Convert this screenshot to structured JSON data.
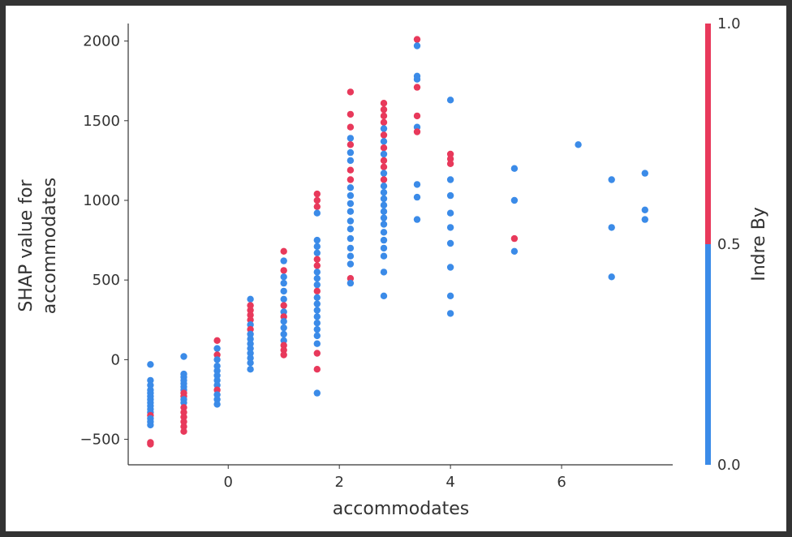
{
  "chart_data": {
    "type": "scatter",
    "xlabel": "accommodates",
    "ylabel": [
      "SHAP value for",
      "accommodates"
    ],
    "xlim": [
      -1.8,
      8.0
    ],
    "ylim": [
      -660,
      2110
    ],
    "xticks": [
      "0",
      "2",
      "4",
      "6"
    ],
    "xtick_values": [
      0,
      2,
      4,
      6
    ],
    "yticks": [
      "−500",
      "0",
      "500",
      "1000",
      "1500",
      "2000"
    ],
    "ytick_values": [
      -500,
      0,
      500,
      1000,
      1500,
      2000
    ],
    "colorbar": {
      "label": "Indre By",
      "ticks": [
        "1.0",
        "0.5",
        "0.0"
      ],
      "tick_values": [
        1.0,
        0.5,
        0.0
      ],
      "low_color": "#3b8be8",
      "high_color": "#e8395b"
    },
    "colors": {
      "blue": "#3b8be8",
      "red": "#e8395b"
    },
    "points": [
      {
        "x": -1.4,
        "y": -30,
        "c": 0
      },
      {
        "x": -1.4,
        "y": -130,
        "c": 0
      },
      {
        "x": -1.4,
        "y": -160,
        "c": 0
      },
      {
        "x": -1.4,
        "y": -190,
        "c": 0
      },
      {
        "x": -1.4,
        "y": -210,
        "c": 0
      },
      {
        "x": -1.4,
        "y": -230,
        "c": 0
      },
      {
        "x": -1.4,
        "y": -250,
        "c": 0
      },
      {
        "x": -1.4,
        "y": -270,
        "c": 0
      },
      {
        "x": -1.4,
        "y": -290,
        "c": 0
      },
      {
        "x": -1.4,
        "y": -310,
        "c": 0
      },
      {
        "x": -1.4,
        "y": -330,
        "c": 0
      },
      {
        "x": -1.4,
        "y": -350,
        "c": 1
      },
      {
        "x": -1.4,
        "y": -370,
        "c": 0
      },
      {
        "x": -1.4,
        "y": -390,
        "c": 0
      },
      {
        "x": -1.4,
        "y": -410,
        "c": 0
      },
      {
        "x": -1.4,
        "y": -520,
        "c": 1
      },
      {
        "x": -1.4,
        "y": -530,
        "c": 1
      },
      {
        "x": -0.8,
        "y": 20,
        "c": 0
      },
      {
        "x": -0.8,
        "y": -90,
        "c": 0
      },
      {
        "x": -0.8,
        "y": -110,
        "c": 0
      },
      {
        "x": -0.8,
        "y": -130,
        "c": 0
      },
      {
        "x": -0.8,
        "y": -150,
        "c": 0
      },
      {
        "x": -0.8,
        "y": -170,
        "c": 0
      },
      {
        "x": -0.8,
        "y": -190,
        "c": 0
      },
      {
        "x": -0.8,
        "y": -210,
        "c": 1
      },
      {
        "x": -0.8,
        "y": -230,
        "c": 1
      },
      {
        "x": -0.8,
        "y": -250,
        "c": 0
      },
      {
        "x": -0.8,
        "y": -270,
        "c": 0
      },
      {
        "x": -0.8,
        "y": -300,
        "c": 1
      },
      {
        "x": -0.8,
        "y": -330,
        "c": 1
      },
      {
        "x": -0.8,
        "y": -360,
        "c": 1
      },
      {
        "x": -0.8,
        "y": -390,
        "c": 1
      },
      {
        "x": -0.8,
        "y": -420,
        "c": 1
      },
      {
        "x": -0.8,
        "y": -450,
        "c": 1
      },
      {
        "x": -0.2,
        "y": 120,
        "c": 1
      },
      {
        "x": -0.2,
        "y": 70,
        "c": 0
      },
      {
        "x": -0.2,
        "y": 30,
        "c": 1
      },
      {
        "x": -0.2,
        "y": 0,
        "c": 0
      },
      {
        "x": -0.2,
        "y": -40,
        "c": 0
      },
      {
        "x": -0.2,
        "y": -70,
        "c": 0
      },
      {
        "x": -0.2,
        "y": -100,
        "c": 0
      },
      {
        "x": -0.2,
        "y": -130,
        "c": 0
      },
      {
        "x": -0.2,
        "y": -160,
        "c": 0
      },
      {
        "x": -0.2,
        "y": -190,
        "c": 1
      },
      {
        "x": -0.2,
        "y": -220,
        "c": 0
      },
      {
        "x": -0.2,
        "y": -250,
        "c": 0
      },
      {
        "x": -0.2,
        "y": -280,
        "c": 0
      },
      {
        "x": 0.4,
        "y": 380,
        "c": 0
      },
      {
        "x": 0.4,
        "y": 340,
        "c": 1
      },
      {
        "x": 0.4,
        "y": 310,
        "c": 1
      },
      {
        "x": 0.4,
        "y": 280,
        "c": 1
      },
      {
        "x": 0.4,
        "y": 250,
        "c": 1
      },
      {
        "x": 0.4,
        "y": 220,
        "c": 0
      },
      {
        "x": 0.4,
        "y": 190,
        "c": 1
      },
      {
        "x": 0.4,
        "y": 160,
        "c": 0
      },
      {
        "x": 0.4,
        "y": 130,
        "c": 0
      },
      {
        "x": 0.4,
        "y": 100,
        "c": 0
      },
      {
        "x": 0.4,
        "y": 70,
        "c": 0
      },
      {
        "x": 0.4,
        "y": 40,
        "c": 0
      },
      {
        "x": 0.4,
        "y": 10,
        "c": 0
      },
      {
        "x": 0.4,
        "y": -20,
        "c": 0
      },
      {
        "x": 0.4,
        "y": -60,
        "c": 0
      },
      {
        "x": 1.0,
        "y": 680,
        "c": 1
      },
      {
        "x": 1.0,
        "y": 620,
        "c": 0
      },
      {
        "x": 1.0,
        "y": 560,
        "c": 1
      },
      {
        "x": 1.0,
        "y": 520,
        "c": 0
      },
      {
        "x": 1.0,
        "y": 480,
        "c": 0
      },
      {
        "x": 1.0,
        "y": 430,
        "c": 0
      },
      {
        "x": 1.0,
        "y": 380,
        "c": 0
      },
      {
        "x": 1.0,
        "y": 340,
        "c": 1
      },
      {
        "x": 1.0,
        "y": 300,
        "c": 0
      },
      {
        "x": 1.0,
        "y": 270,
        "c": 1
      },
      {
        "x": 1.0,
        "y": 240,
        "c": 0
      },
      {
        "x": 1.0,
        "y": 200,
        "c": 0
      },
      {
        "x": 1.0,
        "y": 160,
        "c": 0
      },
      {
        "x": 1.0,
        "y": 120,
        "c": 0
      },
      {
        "x": 1.0,
        "y": 90,
        "c": 1
      },
      {
        "x": 1.0,
        "y": 60,
        "c": 1
      },
      {
        "x": 1.0,
        "y": 30,
        "c": 1
      },
      {
        "x": 1.6,
        "y": 1040,
        "c": 1
      },
      {
        "x": 1.6,
        "y": 1000,
        "c": 1
      },
      {
        "x": 1.6,
        "y": 960,
        "c": 1
      },
      {
        "x": 1.6,
        "y": 920,
        "c": 0
      },
      {
        "x": 1.6,
        "y": 750,
        "c": 0
      },
      {
        "x": 1.6,
        "y": 710,
        "c": 0
      },
      {
        "x": 1.6,
        "y": 670,
        "c": 0
      },
      {
        "x": 1.6,
        "y": 630,
        "c": 1
      },
      {
        "x": 1.6,
        "y": 590,
        "c": 1
      },
      {
        "x": 1.6,
        "y": 550,
        "c": 0
      },
      {
        "x": 1.6,
        "y": 510,
        "c": 0
      },
      {
        "x": 1.6,
        "y": 470,
        "c": 0
      },
      {
        "x": 1.6,
        "y": 430,
        "c": 1
      },
      {
        "x": 1.6,
        "y": 390,
        "c": 0
      },
      {
        "x": 1.6,
        "y": 350,
        "c": 0
      },
      {
        "x": 1.6,
        "y": 310,
        "c": 0
      },
      {
        "x": 1.6,
        "y": 270,
        "c": 0
      },
      {
        "x": 1.6,
        "y": 230,
        "c": 0
      },
      {
        "x": 1.6,
        "y": 190,
        "c": 0
      },
      {
        "x": 1.6,
        "y": 150,
        "c": 0
      },
      {
        "x": 1.6,
        "y": 100,
        "c": 0
      },
      {
        "x": 1.6,
        "y": 40,
        "c": 1
      },
      {
        "x": 1.6,
        "y": -60,
        "c": 1
      },
      {
        "x": 1.6,
        "y": -210,
        "c": 0
      },
      {
        "x": 2.2,
        "y": 1680,
        "c": 1
      },
      {
        "x": 2.2,
        "y": 1540,
        "c": 1
      },
      {
        "x": 2.2,
        "y": 1460,
        "c": 1
      },
      {
        "x": 2.2,
        "y": 1390,
        "c": 0
      },
      {
        "x": 2.2,
        "y": 1350,
        "c": 1
      },
      {
        "x": 2.2,
        "y": 1300,
        "c": 0
      },
      {
        "x": 2.2,
        "y": 1250,
        "c": 0
      },
      {
        "x": 2.2,
        "y": 1190,
        "c": 1
      },
      {
        "x": 2.2,
        "y": 1130,
        "c": 1
      },
      {
        "x": 2.2,
        "y": 1080,
        "c": 0
      },
      {
        "x": 2.2,
        "y": 1030,
        "c": 0
      },
      {
        "x": 2.2,
        "y": 980,
        "c": 0
      },
      {
        "x": 2.2,
        "y": 930,
        "c": 0
      },
      {
        "x": 2.2,
        "y": 870,
        "c": 0
      },
      {
        "x": 2.2,
        "y": 820,
        "c": 0
      },
      {
        "x": 2.2,
        "y": 760,
        "c": 0
      },
      {
        "x": 2.2,
        "y": 700,
        "c": 0
      },
      {
        "x": 2.2,
        "y": 650,
        "c": 0
      },
      {
        "x": 2.2,
        "y": 600,
        "c": 0
      },
      {
        "x": 2.2,
        "y": 510,
        "c": 1
      },
      {
        "x": 2.2,
        "y": 480,
        "c": 0
      },
      {
        "x": 2.8,
        "y": 1610,
        "c": 1
      },
      {
        "x": 2.8,
        "y": 1570,
        "c": 1
      },
      {
        "x": 2.8,
        "y": 1530,
        "c": 1
      },
      {
        "x": 2.8,
        "y": 1490,
        "c": 1
      },
      {
        "x": 2.8,
        "y": 1450,
        "c": 0
      },
      {
        "x": 2.8,
        "y": 1410,
        "c": 1
      },
      {
        "x": 2.8,
        "y": 1370,
        "c": 0
      },
      {
        "x": 2.8,
        "y": 1330,
        "c": 1
      },
      {
        "x": 2.8,
        "y": 1290,
        "c": 0
      },
      {
        "x": 2.8,
        "y": 1250,
        "c": 1
      },
      {
        "x": 2.8,
        "y": 1210,
        "c": 1
      },
      {
        "x": 2.8,
        "y": 1170,
        "c": 0
      },
      {
        "x": 2.8,
        "y": 1130,
        "c": 1
      },
      {
        "x": 2.8,
        "y": 1090,
        "c": 0
      },
      {
        "x": 2.8,
        "y": 1050,
        "c": 0
      },
      {
        "x": 2.8,
        "y": 1010,
        "c": 0
      },
      {
        "x": 2.8,
        "y": 970,
        "c": 0
      },
      {
        "x": 2.8,
        "y": 930,
        "c": 0
      },
      {
        "x": 2.8,
        "y": 890,
        "c": 0
      },
      {
        "x": 2.8,
        "y": 850,
        "c": 0
      },
      {
        "x": 2.8,
        "y": 800,
        "c": 0
      },
      {
        "x": 2.8,
        "y": 750,
        "c": 0
      },
      {
        "x": 2.8,
        "y": 700,
        "c": 0
      },
      {
        "x": 2.8,
        "y": 650,
        "c": 0
      },
      {
        "x": 2.8,
        "y": 550,
        "c": 0
      },
      {
        "x": 2.8,
        "y": 400,
        "c": 0
      },
      {
        "x": 3.4,
        "y": 2010,
        "c": 1
      },
      {
        "x": 3.4,
        "y": 1970,
        "c": 0
      },
      {
        "x": 3.4,
        "y": 1780,
        "c": 0
      },
      {
        "x": 3.4,
        "y": 1760,
        "c": 0
      },
      {
        "x": 3.4,
        "y": 1710,
        "c": 1
      },
      {
        "x": 3.4,
        "y": 1530,
        "c": 1
      },
      {
        "x": 3.4,
        "y": 1460,
        "c": 0
      },
      {
        "x": 3.4,
        "y": 1430,
        "c": 1
      },
      {
        "x": 3.4,
        "y": 1100,
        "c": 0
      },
      {
        "x": 3.4,
        "y": 1020,
        "c": 0
      },
      {
        "x": 3.4,
        "y": 880,
        "c": 0
      },
      {
        "x": 4.0,
        "y": 1630,
        "c": 0
      },
      {
        "x": 4.0,
        "y": 1290,
        "c": 1
      },
      {
        "x": 4.0,
        "y": 1260,
        "c": 1
      },
      {
        "x": 4.0,
        "y": 1230,
        "c": 1
      },
      {
        "x": 4.0,
        "y": 1130,
        "c": 0
      },
      {
        "x": 4.0,
        "y": 1030,
        "c": 0
      },
      {
        "x": 4.0,
        "y": 920,
        "c": 0
      },
      {
        "x": 4.0,
        "y": 830,
        "c": 0
      },
      {
        "x": 4.0,
        "y": 730,
        "c": 0
      },
      {
        "x": 4.0,
        "y": 580,
        "c": 0
      },
      {
        "x": 4.0,
        "y": 400,
        "c": 0
      },
      {
        "x": 4.0,
        "y": 290,
        "c": 0
      },
      {
        "x": 5.15,
        "y": 1200,
        "c": 0
      },
      {
        "x": 5.15,
        "y": 1000,
        "c": 0
      },
      {
        "x": 5.15,
        "y": 760,
        "c": 1
      },
      {
        "x": 5.15,
        "y": 680,
        "c": 0
      },
      {
        "x": 6.3,
        "y": 1350,
        "c": 0
      },
      {
        "x": 6.9,
        "y": 1130,
        "c": 0
      },
      {
        "x": 6.9,
        "y": 830,
        "c": 0
      },
      {
        "x": 6.9,
        "y": 520,
        "c": 0
      },
      {
        "x": 7.5,
        "y": 1170,
        "c": 0
      },
      {
        "x": 7.5,
        "y": 940,
        "c": 0
      },
      {
        "x": 7.5,
        "y": 880,
        "c": 0
      }
    ]
  }
}
